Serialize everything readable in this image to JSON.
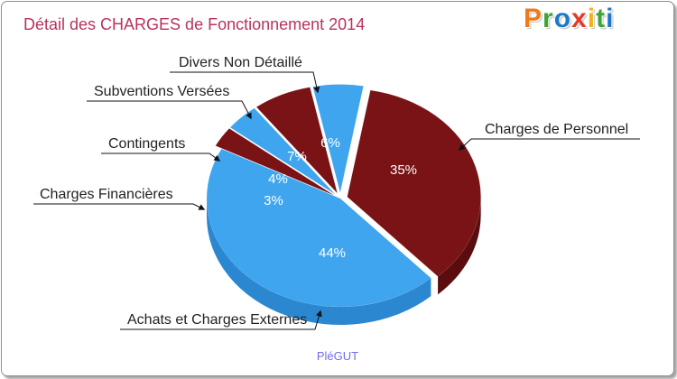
{
  "page": {
    "title": "Détail des CHARGES de Fonctionnement 2014",
    "logo": [
      "P",
      "r",
      "o",
      "x",
      "i",
      "t",
      "i"
    ],
    "caption": "PléGUT"
  },
  "colors": {
    "blue": "#3fa5ee",
    "blue_side": "#2b87cf",
    "red": "#7a1316",
    "red_side": "#5a0c0f",
    "title": "#b8335e",
    "logo": [
      "#f07a1a",
      "#3fa33a",
      "#1e78c8",
      "#e23a2a",
      "#f0b41a",
      "#3fa33a",
      "#1e78c8"
    ]
  },
  "chart_data": {
    "type": "pie",
    "title": "Détail des CHARGES de Fonctionnement 2014",
    "subtitle": "PléGUT",
    "categories": [
      "Charges de Personnel",
      "Achats et Charges Externes",
      "Charges Financières",
      "Contingents",
      "Subventions Versées",
      "Divers Non Détaillé"
    ],
    "values": [
      35,
      44,
      3,
      4,
      7,
      6
    ],
    "labels": [
      "35%",
      "44%",
      "3%",
      "4%",
      "7%",
      "6%"
    ],
    "colors": [
      "red",
      "blue",
      "red",
      "blue",
      "red",
      "blue"
    ],
    "exploded": true,
    "three_d": true
  }
}
